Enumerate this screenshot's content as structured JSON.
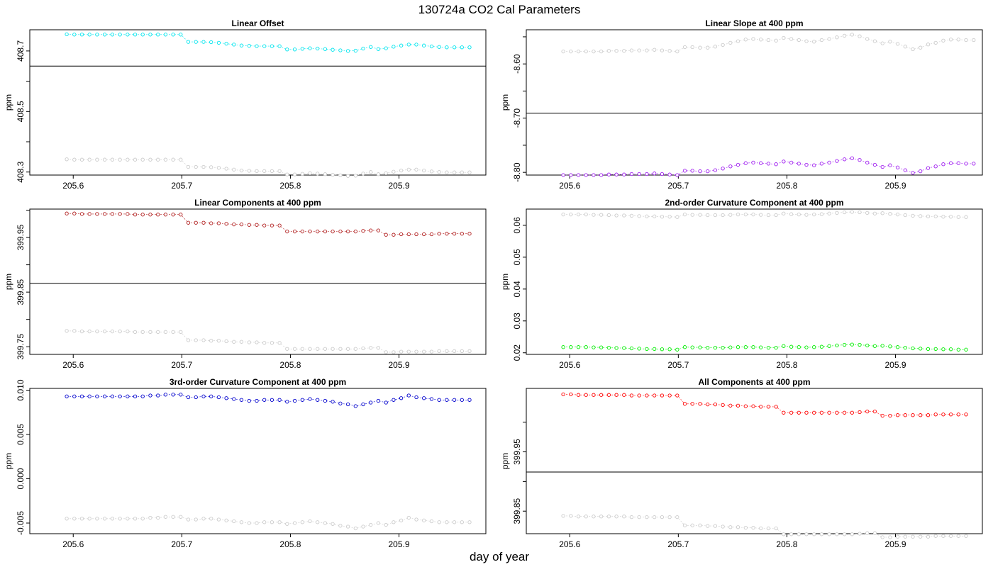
{
  "figure": {
    "suptitle": "130724a   CO2 Cal Parameters",
    "xlabel": "day of year"
  },
  "chart_data": [
    {
      "type": "scatter",
      "title": "Linear Offset",
      "ylabel": "ppm",
      "xlim": [
        205.56,
        205.98
      ],
      "ylim": [
        408.29,
        408.77
      ],
      "xticks": [
        "205.6",
        "205.7",
        "205.8",
        "205.9"
      ],
      "yticks": [
        "408.3",
        "408.5",
        "408.7"
      ],
      "hline": 408.65,
      "series": [
        {
          "color": "#00e5ee",
          "start": 408.755,
          "delta": [
            0.0,
            -0.001,
            -0.001,
            -0.001,
            -0.001,
            -0.001,
            -0.001,
            -0.001,
            -0.001,
            -0.001,
            -0.001,
            -0.001,
            -0.001,
            -0.001,
            -0.001,
            -0.001,
            -0.025,
            -0.025,
            -0.025,
            -0.026,
            -0.028,
            -0.031,
            -0.034,
            -0.037,
            -0.038,
            -0.039,
            -0.039,
            -0.039,
            -0.039,
            -0.05,
            -0.05,
            -0.048,
            -0.046,
            -0.047,
            -0.049,
            -0.051,
            -0.053,
            -0.055,
            -0.054,
            -0.047,
            -0.042,
            -0.049,
            -0.046,
            -0.041,
            -0.037,
            -0.034,
            -0.034,
            -0.037,
            -0.04,
            -0.042,
            -0.043,
            -0.043,
            -0.043,
            -0.043
          ]
        },
        {
          "color": "#cccccc",
          "start": 408.342,
          "delta": [
            0.0,
            -0.001,
            -0.001,
            -0.001,
            -0.001,
            -0.001,
            -0.001,
            -0.001,
            -0.001,
            -0.001,
            -0.001,
            -0.001,
            -0.001,
            -0.001,
            -0.001,
            -0.001,
            -0.025,
            -0.025,
            -0.025,
            -0.026,
            -0.028,
            -0.031,
            -0.034,
            -0.037,
            -0.038,
            -0.039,
            -0.039,
            -0.039,
            -0.039,
            -0.05,
            -0.05,
            -0.048,
            -0.046,
            -0.047,
            -0.049,
            -0.051,
            -0.053,
            -0.055,
            -0.054,
            -0.047,
            -0.042,
            -0.049,
            -0.046,
            -0.041,
            -0.037,
            -0.034,
            -0.034,
            -0.037,
            -0.04,
            -0.042,
            -0.043,
            -0.043,
            -0.043,
            -0.043
          ]
        }
      ]
    },
    {
      "type": "scatter",
      "title": "Linear Slope at 400 ppm",
      "ylabel": "ppm",
      "xlim": [
        205.56,
        205.98
      ],
      "ylim": [
        -8.805,
        -8.537
      ],
      "xticks": [
        "205.6",
        "205.7",
        "205.8",
        "205.9"
      ],
      "yticks": [
        "-8.60",
        "-8.70",
        "-8.80"
      ],
      "hline": -8.691,
      "series": [
        {
          "color": "#cccccc",
          "start": -8.577,
          "delta": [
            0.0,
            0.0,
            0.0,
            0.0,
            0.0,
            0.0,
            0.001,
            0.001,
            0.001,
            0.002,
            0.002,
            0.002,
            0.003,
            0.002,
            0.001,
            0.0,
            0.008,
            0.008,
            0.007,
            0.007,
            0.009,
            0.012,
            0.016,
            0.019,
            0.022,
            0.023,
            0.022,
            0.021,
            0.02,
            0.025,
            0.023,
            0.021,
            0.019,
            0.018,
            0.021,
            0.023,
            0.026,
            0.029,
            0.031,
            0.028,
            0.023,
            0.019,
            0.015,
            0.018,
            0.014,
            0.009,
            0.004,
            0.007,
            0.013,
            0.016,
            0.02,
            0.022,
            0.022,
            0.021,
            0.021
          ]
        },
        {
          "color": "#a020f0",
          "start": -8.805,
          "delta": [
            0.0,
            0.0,
            0.0,
            0.0,
            0.0,
            0.0,
            0.001,
            0.001,
            0.001,
            0.002,
            0.002,
            0.002,
            0.003,
            0.002,
            0.001,
            0.0,
            0.008,
            0.008,
            0.007,
            0.007,
            0.009,
            0.012,
            0.016,
            0.019,
            0.022,
            0.023,
            0.022,
            0.021,
            0.02,
            0.025,
            0.023,
            0.021,
            0.019,
            0.018,
            0.021,
            0.023,
            0.026,
            0.029,
            0.031,
            0.028,
            0.023,
            0.019,
            0.015,
            0.018,
            0.014,
            0.009,
            0.004,
            0.007,
            0.013,
            0.016,
            0.02,
            0.022,
            0.022,
            0.021,
            0.021
          ]
        }
      ]
    },
    {
      "type": "scatter",
      "title": "Linear Components at 400 ppm",
      "ylabel": "ppm",
      "xlim": [
        205.56,
        205.98
      ],
      "ylim": [
        399.736,
        400.002
      ],
      "xticks": [
        "205.6",
        "205.7",
        "205.8",
        "205.9"
      ],
      "yticks": [
        "399.75",
        "399.85",
        "399.95"
      ],
      "hline": 399.866,
      "series": [
        {
          "color": "#b22222",
          "start": 399.994,
          "delta": [
            0.0,
            0.0,
            -0.001,
            -0.001,
            -0.001,
            -0.001,
            -0.001,
            -0.001,
            -0.001,
            -0.002,
            -0.002,
            -0.002,
            -0.002,
            -0.002,
            -0.002,
            -0.002,
            -0.017,
            -0.017,
            -0.017,
            -0.018,
            -0.018,
            -0.019,
            -0.02,
            -0.02,
            -0.021,
            -0.021,
            -0.022,
            -0.022,
            -0.022,
            -0.033,
            -0.033,
            -0.033,
            -0.033,
            -0.033,
            -0.033,
            -0.033,
            -0.033,
            -0.033,
            -0.033,
            -0.032,
            -0.031,
            -0.031,
            -0.039,
            -0.039,
            -0.038,
            -0.038,
            -0.038,
            -0.038,
            -0.038,
            -0.037,
            -0.037,
            -0.037,
            -0.037,
            -0.037
          ]
        },
        {
          "color": "#cccccc",
          "start": 399.779,
          "delta": [
            0.0,
            0.0,
            -0.001,
            -0.001,
            -0.001,
            -0.001,
            -0.001,
            -0.001,
            -0.001,
            -0.002,
            -0.002,
            -0.002,
            -0.002,
            -0.002,
            -0.002,
            -0.002,
            -0.017,
            -0.017,
            -0.017,
            -0.018,
            -0.018,
            -0.019,
            -0.02,
            -0.02,
            -0.021,
            -0.021,
            -0.022,
            -0.022,
            -0.022,
            -0.033,
            -0.033,
            -0.033,
            -0.033,
            -0.033,
            -0.033,
            -0.033,
            -0.033,
            -0.033,
            -0.033,
            -0.032,
            -0.031,
            -0.031,
            -0.039,
            -0.039,
            -0.038,
            -0.038,
            -0.038,
            -0.038,
            -0.038,
            -0.037,
            -0.037,
            -0.037,
            -0.037,
            -0.037
          ]
        }
      ]
    },
    {
      "type": "scatter",
      "title": "2nd-order Curvature Component at 400 ppm",
      "ylabel": "ppm",
      "xlim": [
        205.56,
        205.98
      ],
      "ylim": [
        0.0195,
        0.0651
      ],
      "xticks": [
        "205.6",
        "205.7",
        "205.8",
        "205.9"
      ],
      "yticks": [
        "0.02",
        "0.03",
        "0.04",
        "0.05",
        "0.06"
      ],
      "hline": null,
      "series": [
        {
          "color": "#cccccc",
          "start": 0.0634,
          "delta": [
            0.0,
            0.0,
            0.0,
            0.0,
            -0.0001,
            -0.0001,
            -0.0002,
            -0.0003,
            -0.0003,
            -0.0004,
            -0.0005,
            -0.0006,
            -0.0006,
            -0.0007,
            -0.0007,
            -0.0008,
            0.0,
            -0.0001,
            -0.0001,
            -0.0002,
            -0.0002,
            -0.0002,
            -0.0001,
            0.0,
            0.0,
            0.0,
            -0.0001,
            -0.0002,
            -0.0002,
            0.0003,
            0.0001,
            0.0,
            -0.0001,
            0.0,
            0.0001,
            0.0003,
            0.0005,
            0.0007,
            0.0008,
            0.0007,
            0.0005,
            0.0003,
            0.0004,
            0.0002,
            0.0,
            -0.0002,
            -0.0004,
            -0.0005,
            -0.0006,
            -0.0006,
            -0.0007,
            -0.0007,
            -0.0008,
            -0.0008
          ]
        },
        {
          "color": "#00ee00",
          "start": 0.0218,
          "delta": [
            0.0,
            0.0,
            0.0,
            0.0,
            -0.0001,
            -0.0001,
            -0.0002,
            -0.0003,
            -0.0003,
            -0.0004,
            -0.0005,
            -0.0006,
            -0.0006,
            -0.0007,
            -0.0007,
            -0.0008,
            0.0,
            -0.0001,
            -0.0001,
            -0.0002,
            -0.0002,
            -0.0002,
            -0.0001,
            0.0,
            0.0,
            0.0,
            -0.0001,
            -0.0002,
            -0.0002,
            0.0003,
            0.0001,
            0.0,
            -0.0001,
            0.0,
            0.0001,
            0.0003,
            0.0005,
            0.0007,
            0.0008,
            0.0007,
            0.0005,
            0.0003,
            0.0004,
            0.0002,
            0.0,
            -0.0002,
            -0.0004,
            -0.0005,
            -0.0006,
            -0.0006,
            -0.0007,
            -0.0007,
            -0.0008,
            -0.0008
          ]
        }
      ]
    },
    {
      "type": "scatter",
      "title": "3rd-order Curvature Component at 400 ppm",
      "ylabel": "ppm",
      "xlim": [
        205.56,
        205.98
      ],
      "ylim": [
        -0.0062,
        0.0102
      ],
      "xticks": [
        "205.6",
        "205.7",
        "205.8",
        "205.9"
      ],
      "yticks": [
        "-0.005",
        "0.000",
        "0.005",
        "0.010"
      ],
      "hline": null,
      "series": [
        {
          "color": "#0000cd",
          "start": 0.0093,
          "delta": [
            0.0,
            0.0,
            0.0,
            0.0,
            0.0,
            0.0,
            0.0,
            0.0,
            0.0,
            0.0,
            0.0,
            0.0001,
            0.0001,
            0.0002,
            0.0002,
            0.0002,
            -0.0001,
            -0.0001,
            0.0,
            0.0,
            -0.0001,
            -0.0002,
            -0.0003,
            -0.0004,
            -0.0005,
            -0.0005,
            -0.0004,
            -0.0004,
            -0.0004,
            -0.0006,
            -0.0005,
            -0.0004,
            -0.0003,
            -0.0004,
            -0.0005,
            -0.0006,
            -0.0008,
            -0.0009,
            -0.0011,
            -0.0009,
            -0.0007,
            -0.0005,
            -0.0007,
            -0.0004,
            -0.0002,
            0.0001,
            -0.0001,
            -0.0002,
            -0.0003,
            -0.0004,
            -0.0004,
            -0.0004,
            -0.0004,
            -0.0004
          ]
        },
        {
          "color": "#cccccc",
          "start": -0.0045,
          "delta": [
            0.0,
            0.0,
            0.0,
            0.0,
            0.0,
            0.0,
            0.0,
            0.0,
            0.0,
            0.0,
            0.0,
            0.0001,
            0.0001,
            0.0002,
            0.0002,
            0.0002,
            -0.0001,
            -0.0001,
            0.0,
            0.0,
            -0.0001,
            -0.0002,
            -0.0003,
            -0.0004,
            -0.0005,
            -0.0005,
            -0.0004,
            -0.0004,
            -0.0004,
            -0.0006,
            -0.0005,
            -0.0004,
            -0.0003,
            -0.0004,
            -0.0005,
            -0.0006,
            -0.0008,
            -0.0009,
            -0.0011,
            -0.0009,
            -0.0007,
            -0.0005,
            -0.0007,
            -0.0004,
            -0.0002,
            0.0001,
            -0.0001,
            -0.0002,
            -0.0003,
            -0.0004,
            -0.0004,
            -0.0004,
            -0.0004,
            -0.0004
          ]
        }
      ]
    },
    {
      "type": "scatter",
      "title": "All Components at 400 ppm",
      "ylabel": "ppm",
      "xlim": [
        205.56,
        205.98
      ],
      "ylim": [
        399.812,
        400.057
      ],
      "xticks": [
        "205.6",
        "205.7",
        "205.8",
        "205.9"
      ],
      "yticks": [
        "399.85",
        "399.95"
      ],
      "hline": 399.916,
      "series": [
        {
          "color": "#ff0000",
          "start": 400.047,
          "delta": [
            0.0,
            0.0,
            -0.001,
            -0.001,
            -0.001,
            -0.001,
            -0.001,
            -0.001,
            -0.001,
            -0.002,
            -0.002,
            -0.002,
            -0.002,
            -0.002,
            -0.002,
            -0.002,
            -0.016,
            -0.016,
            -0.016,
            -0.017,
            -0.017,
            -0.018,
            -0.019,
            -0.019,
            -0.02,
            -0.02,
            -0.021,
            -0.021,
            -0.021,
            -0.031,
            -0.031,
            -0.031,
            -0.031,
            -0.031,
            -0.031,
            -0.031,
            -0.031,
            -0.031,
            -0.031,
            -0.03,
            -0.029,
            -0.029,
            -0.036,
            -0.036,
            -0.035,
            -0.035,
            -0.035,
            -0.035,
            -0.035,
            -0.034,
            -0.034,
            -0.034,
            -0.034,
            -0.034
          ]
        },
        {
          "color": "#cccccc",
          "start": 399.842,
          "delta": [
            0.0,
            0.0,
            -0.001,
            -0.001,
            -0.001,
            -0.001,
            -0.001,
            -0.001,
            -0.001,
            -0.002,
            -0.002,
            -0.002,
            -0.002,
            -0.002,
            -0.002,
            -0.002,
            -0.016,
            -0.016,
            -0.016,
            -0.017,
            -0.017,
            -0.018,
            -0.019,
            -0.019,
            -0.02,
            -0.02,
            -0.021,
            -0.021,
            -0.021,
            -0.031,
            -0.031,
            -0.031,
            -0.031,
            -0.031,
            -0.031,
            -0.031,
            -0.031,
            -0.031,
            -0.031,
            -0.03,
            -0.029,
            -0.029,
            -0.036,
            -0.036,
            -0.035,
            -0.035,
            -0.035,
            -0.035,
            -0.035,
            -0.034,
            -0.034,
            -0.034,
            -0.034,
            -0.034
          ]
        }
      ]
    }
  ]
}
